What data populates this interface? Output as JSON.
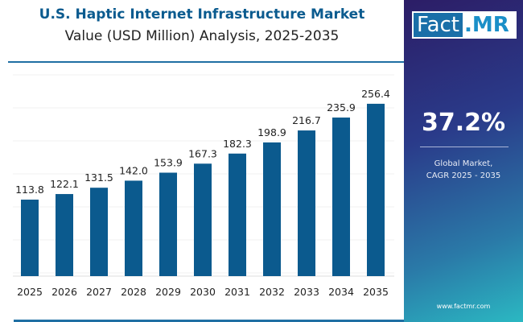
{
  "chart_data": {
    "type": "bar",
    "title": "U.S. Haptic Internet Infrastructure Market",
    "subtitle": "Value (USD Million) Analysis, 2025-2035",
    "categories": [
      "2025",
      "2026",
      "2027",
      "2028",
      "2029",
      "2030",
      "2031",
      "2032",
      "2033",
      "2034",
      "2035"
    ],
    "values": [
      113.8,
      122.1,
      131.5,
      142.0,
      153.9,
      167.3,
      182.3,
      198.9,
      216.7,
      235.9,
      256.4
    ],
    "value_labels": [
      "113.8",
      "122.1",
      "131.5",
      "142.0",
      "153.9",
      "167.3",
      "182.3",
      "198.9",
      "216.7",
      "235.9",
      "256.4"
    ],
    "ylim": [
      0,
      300
    ],
    "grid": true,
    "bar_color": "#0b5a8e"
  },
  "panel": {
    "logo_fact": "Fact",
    "logo_mr": ".MR",
    "cagr": "37.2%",
    "label_line1": "Global Market,",
    "label_line2": "CAGR 2025 - 2035",
    "url": "www.factmr.com"
  }
}
